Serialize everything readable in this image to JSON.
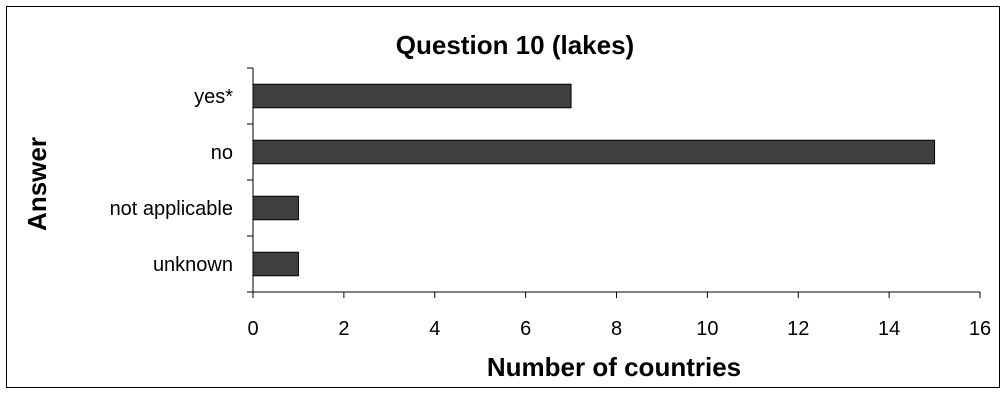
{
  "chart_data": {
    "type": "bar",
    "orientation": "horizontal",
    "title": "Question 10 (lakes)",
    "xlabel": "Number of countries",
    "ylabel": "Answer",
    "categories": [
      "yes*",
      "no",
      "not applicable",
      "unknown"
    ],
    "values": [
      7,
      15,
      1,
      1
    ],
    "xlim": [
      0,
      16
    ],
    "xticks": [
      0,
      2,
      4,
      6,
      8,
      10,
      12,
      14,
      16
    ],
    "grid": false,
    "legend": "none",
    "bar_color": "#3f3f3f"
  }
}
